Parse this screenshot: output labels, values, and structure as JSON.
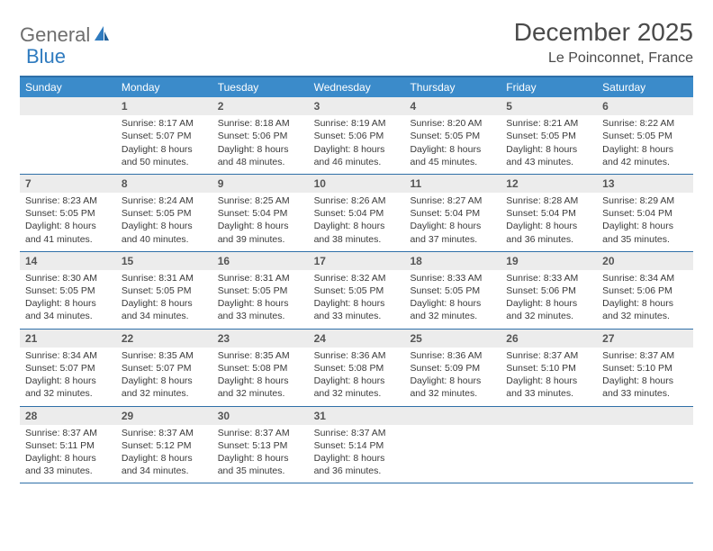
{
  "brand": {
    "name_a": "General",
    "name_b": "Blue"
  },
  "title": "December 2025",
  "location": "Le Poinconnet, France",
  "colors": {
    "header_bg": "#3b8bca",
    "border": "#2f6fa8",
    "daynum_bg": "#ececec",
    "text": "#3a3a3a",
    "brand_gray": "#6e6e6e",
    "brand_blue": "#2f7bbf"
  },
  "day_names": [
    "Sunday",
    "Monday",
    "Tuesday",
    "Wednesday",
    "Thursday",
    "Friday",
    "Saturday"
  ],
  "weeks": [
    [
      null,
      {
        "n": "1",
        "sr": "Sunrise: 8:17 AM",
        "ss": "Sunset: 5:07 PM",
        "d1": "Daylight: 8 hours",
        "d2": "and 50 minutes."
      },
      {
        "n": "2",
        "sr": "Sunrise: 8:18 AM",
        "ss": "Sunset: 5:06 PM",
        "d1": "Daylight: 8 hours",
        "d2": "and 48 minutes."
      },
      {
        "n": "3",
        "sr": "Sunrise: 8:19 AM",
        "ss": "Sunset: 5:06 PM",
        "d1": "Daylight: 8 hours",
        "d2": "and 46 minutes."
      },
      {
        "n": "4",
        "sr": "Sunrise: 8:20 AM",
        "ss": "Sunset: 5:05 PM",
        "d1": "Daylight: 8 hours",
        "d2": "and 45 minutes."
      },
      {
        "n": "5",
        "sr": "Sunrise: 8:21 AM",
        "ss": "Sunset: 5:05 PM",
        "d1": "Daylight: 8 hours",
        "d2": "and 43 minutes."
      },
      {
        "n": "6",
        "sr": "Sunrise: 8:22 AM",
        "ss": "Sunset: 5:05 PM",
        "d1": "Daylight: 8 hours",
        "d2": "and 42 minutes."
      }
    ],
    [
      {
        "n": "7",
        "sr": "Sunrise: 8:23 AM",
        "ss": "Sunset: 5:05 PM",
        "d1": "Daylight: 8 hours",
        "d2": "and 41 minutes."
      },
      {
        "n": "8",
        "sr": "Sunrise: 8:24 AM",
        "ss": "Sunset: 5:05 PM",
        "d1": "Daylight: 8 hours",
        "d2": "and 40 minutes."
      },
      {
        "n": "9",
        "sr": "Sunrise: 8:25 AM",
        "ss": "Sunset: 5:04 PM",
        "d1": "Daylight: 8 hours",
        "d2": "and 39 minutes."
      },
      {
        "n": "10",
        "sr": "Sunrise: 8:26 AM",
        "ss": "Sunset: 5:04 PM",
        "d1": "Daylight: 8 hours",
        "d2": "and 38 minutes."
      },
      {
        "n": "11",
        "sr": "Sunrise: 8:27 AM",
        "ss": "Sunset: 5:04 PM",
        "d1": "Daylight: 8 hours",
        "d2": "and 37 minutes."
      },
      {
        "n": "12",
        "sr": "Sunrise: 8:28 AM",
        "ss": "Sunset: 5:04 PM",
        "d1": "Daylight: 8 hours",
        "d2": "and 36 minutes."
      },
      {
        "n": "13",
        "sr": "Sunrise: 8:29 AM",
        "ss": "Sunset: 5:04 PM",
        "d1": "Daylight: 8 hours",
        "d2": "and 35 minutes."
      }
    ],
    [
      {
        "n": "14",
        "sr": "Sunrise: 8:30 AM",
        "ss": "Sunset: 5:05 PM",
        "d1": "Daylight: 8 hours",
        "d2": "and 34 minutes."
      },
      {
        "n": "15",
        "sr": "Sunrise: 8:31 AM",
        "ss": "Sunset: 5:05 PM",
        "d1": "Daylight: 8 hours",
        "d2": "and 34 minutes."
      },
      {
        "n": "16",
        "sr": "Sunrise: 8:31 AM",
        "ss": "Sunset: 5:05 PM",
        "d1": "Daylight: 8 hours",
        "d2": "and 33 minutes."
      },
      {
        "n": "17",
        "sr": "Sunrise: 8:32 AM",
        "ss": "Sunset: 5:05 PM",
        "d1": "Daylight: 8 hours",
        "d2": "and 33 minutes."
      },
      {
        "n": "18",
        "sr": "Sunrise: 8:33 AM",
        "ss": "Sunset: 5:05 PM",
        "d1": "Daylight: 8 hours",
        "d2": "and 32 minutes."
      },
      {
        "n": "19",
        "sr": "Sunrise: 8:33 AM",
        "ss": "Sunset: 5:06 PM",
        "d1": "Daylight: 8 hours",
        "d2": "and 32 minutes."
      },
      {
        "n": "20",
        "sr": "Sunrise: 8:34 AM",
        "ss": "Sunset: 5:06 PM",
        "d1": "Daylight: 8 hours",
        "d2": "and 32 minutes."
      }
    ],
    [
      {
        "n": "21",
        "sr": "Sunrise: 8:34 AM",
        "ss": "Sunset: 5:07 PM",
        "d1": "Daylight: 8 hours",
        "d2": "and 32 minutes."
      },
      {
        "n": "22",
        "sr": "Sunrise: 8:35 AM",
        "ss": "Sunset: 5:07 PM",
        "d1": "Daylight: 8 hours",
        "d2": "and 32 minutes."
      },
      {
        "n": "23",
        "sr": "Sunrise: 8:35 AM",
        "ss": "Sunset: 5:08 PM",
        "d1": "Daylight: 8 hours",
        "d2": "and 32 minutes."
      },
      {
        "n": "24",
        "sr": "Sunrise: 8:36 AM",
        "ss": "Sunset: 5:08 PM",
        "d1": "Daylight: 8 hours",
        "d2": "and 32 minutes."
      },
      {
        "n": "25",
        "sr": "Sunrise: 8:36 AM",
        "ss": "Sunset: 5:09 PM",
        "d1": "Daylight: 8 hours",
        "d2": "and 32 minutes."
      },
      {
        "n": "26",
        "sr": "Sunrise: 8:37 AM",
        "ss": "Sunset: 5:10 PM",
        "d1": "Daylight: 8 hours",
        "d2": "and 33 minutes."
      },
      {
        "n": "27",
        "sr": "Sunrise: 8:37 AM",
        "ss": "Sunset: 5:10 PM",
        "d1": "Daylight: 8 hours",
        "d2": "and 33 minutes."
      }
    ],
    [
      {
        "n": "28",
        "sr": "Sunrise: 8:37 AM",
        "ss": "Sunset: 5:11 PM",
        "d1": "Daylight: 8 hours",
        "d2": "and 33 minutes."
      },
      {
        "n": "29",
        "sr": "Sunrise: 8:37 AM",
        "ss": "Sunset: 5:12 PM",
        "d1": "Daylight: 8 hours",
        "d2": "and 34 minutes."
      },
      {
        "n": "30",
        "sr": "Sunrise: 8:37 AM",
        "ss": "Sunset: 5:13 PM",
        "d1": "Daylight: 8 hours",
        "d2": "and 35 minutes."
      },
      {
        "n": "31",
        "sr": "Sunrise: 8:37 AM",
        "ss": "Sunset: 5:14 PM",
        "d1": "Daylight: 8 hours",
        "d2": "and 36 minutes."
      },
      null,
      null,
      null
    ]
  ]
}
